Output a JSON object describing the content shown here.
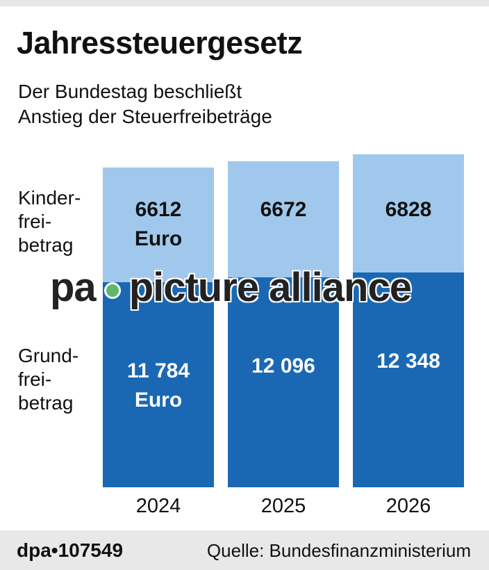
{
  "title": "Jahressteuergesetz",
  "subtitle_lines": [
    "Der Bundestag beschließt",
    "Anstieg der Steuerfreibeträge"
  ],
  "row_labels": {
    "kinder": [
      "Kinder-",
      "frei-",
      "betrag"
    ],
    "grund": [
      "Grund-",
      "frei-",
      "betrag"
    ]
  },
  "chart_data": {
    "type": "bar",
    "stacked": true,
    "categories": [
      "2024",
      "2025",
      "2026"
    ],
    "series": [
      {
        "name": "Grundfreibetrag",
        "values": [
          11784,
          12096,
          12348
        ],
        "labels": [
          "11 784",
          "12 096",
          "12 348"
        ],
        "color": "#1a68b3"
      },
      {
        "name": "Kinderfreibetrag",
        "values": [
          6612,
          6672,
          6828
        ],
        "labels": [
          "6612",
          "6672",
          "6828"
        ],
        "color": "#a0c8ec"
      }
    ],
    "unit_label": "Euro",
    "ylim": [
      0,
      19500
    ],
    "grid": false,
    "legend": "none"
  },
  "watermark": "pa • picture alliance",
  "footer": {
    "id": "dpa•107549",
    "source": "Quelle: Bundesfinanzministerium"
  },
  "colors": {
    "footer_bg": "#e8e8e8",
    "light": "#a0c8ec",
    "dark": "#1a68b3",
    "logo_dot": "#5cb86d"
  }
}
